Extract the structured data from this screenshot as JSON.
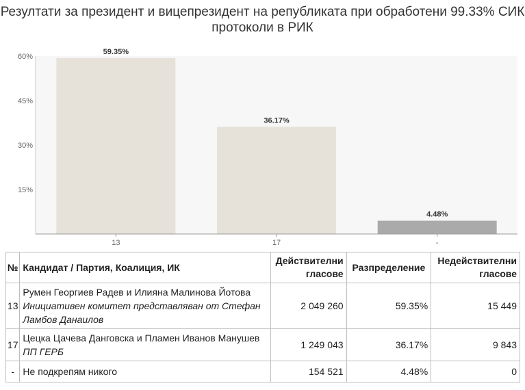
{
  "title": "Резултати за президент и вицепрезидент на републиката при обработени 99.33% СИК протоколи в РИК",
  "chart_data": {
    "type": "bar",
    "categories": [
      "13",
      "17",
      "-"
    ],
    "values": [
      59.35,
      36.17,
      4.48
    ],
    "value_labels": [
      "59.35%",
      "36.17%",
      "4.48%"
    ],
    "y_ticks": [
      "60%",
      "45%",
      "30%",
      "15%"
    ],
    "y_tick_values": [
      60,
      45,
      30,
      15
    ],
    "ylim": [
      0,
      60
    ],
    "grid": false,
    "colors": [
      "#e6e2da",
      "#e6e2da",
      "#aaaaaa"
    ],
    "plot_background": "#f7f7f7"
  },
  "table": {
    "headers": {
      "no": "№",
      "candidate": "Кандидат / Партия, Коалиция, ИК",
      "valid": "Действителни гласове",
      "distribution": "Разпределение",
      "invalid": "Недействителни гласове"
    },
    "rows": [
      {
        "no": "13",
        "candidate": "Румен Георгиев Радев и Илияна Малинова Йотова",
        "party": "Инициативен комитет представляван от Стефан Ламбов Данаилов",
        "valid": "2 049 260",
        "distribution": "59.35%",
        "invalid": "15 449"
      },
      {
        "no": "17",
        "candidate": "Цецка Цачева Данговска и Пламен Иванов Манушев",
        "party": "ПП ГЕРБ",
        "valid": "1 249 043",
        "distribution": "36.17%",
        "invalid": "9 843"
      },
      {
        "no": "-",
        "candidate": "Не подкрепям никого",
        "party": "",
        "valid": "154 521",
        "distribution": "4.48%",
        "invalid": "0"
      }
    ]
  }
}
